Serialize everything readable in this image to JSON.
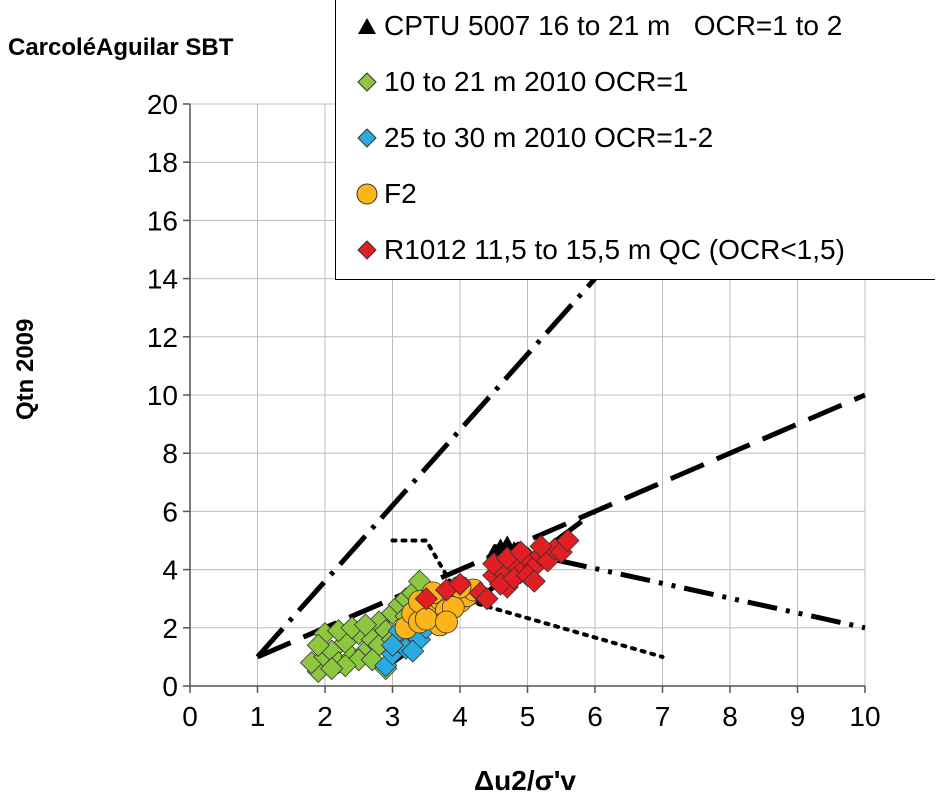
{
  "chart_data": {
    "type": "scatter",
    "title": "CarcoléAguilar SBT",
    "xlabel": "Δu2/σ'v",
    "ylabel": "Qtn 2009",
    "xlim": [
      0,
      10
    ],
    "ylim": [
      0,
      20
    ],
    "x_ticks": [
      "0",
      "1",
      "2",
      "3",
      "4",
      "5",
      "6",
      "7",
      "8",
      "9",
      "10"
    ],
    "y_ticks": [
      "0",
      "2",
      "4",
      "6",
      "8",
      "10",
      "12",
      "14",
      "16",
      "18",
      "20"
    ],
    "grid": true,
    "legend_position": "top-right",
    "series": [
      {
        "name": "CPTU 5007 16 to 21 m   OCR=1 to 2",
        "marker": "triangle",
        "color": "#000000",
        "points": [
          [
            4.5,
            4.6
          ],
          [
            4.6,
            4.8
          ],
          [
            4.7,
            4.9
          ],
          [
            4.6,
            4.5
          ],
          [
            4.8,
            4.7
          ],
          [
            4.5,
            4.3
          ]
        ]
      },
      {
        "name": "10 to 21 m 2010 OCR=1",
        "marker": "diamond",
        "color": "#8dc63f",
        "points": [
          [
            1.9,
            0.5
          ],
          [
            1.8,
            0.8
          ],
          [
            2.0,
            1.0
          ],
          [
            2.1,
            1.2
          ],
          [
            2.2,
            0.8
          ],
          [
            2.3,
            1.5
          ],
          [
            2.4,
            1.0
          ],
          [
            2.5,
            1.8
          ],
          [
            2.6,
            1.2
          ],
          [
            2.7,
            1.6
          ],
          [
            2.8,
            2.2
          ],
          [
            2.9,
            0.6
          ],
          [
            2.0,
            1.8
          ],
          [
            2.2,
            1.9
          ],
          [
            2.4,
            2.0
          ],
          [
            2.6,
            2.1
          ],
          [
            2.8,
            1.4
          ],
          [
            3.0,
            2.5
          ],
          [
            3.1,
            2.8
          ],
          [
            3.2,
            3.0
          ],
          [
            3.3,
            3.2
          ],
          [
            3.4,
            3.6
          ],
          [
            2.5,
            0.9
          ],
          [
            2.3,
            0.7
          ],
          [
            2.1,
            0.6
          ],
          [
            2.9,
            1.9
          ],
          [
            3.0,
            1.6
          ],
          [
            1.9,
            1.4
          ],
          [
            2.7,
            0.9
          ],
          [
            3.2,
            2.4
          ]
        ]
      },
      {
        "name": "25 to 30 m 2010 OCR=1-2",
        "marker": "diamond",
        "color": "#29abe2",
        "points": [
          [
            2.9,
            0.7
          ],
          [
            3.0,
            1.1
          ],
          [
            3.1,
            1.5
          ],
          [
            3.2,
            1.3
          ],
          [
            3.3,
            1.8
          ],
          [
            3.4,
            1.6
          ],
          [
            3.5,
            2.0
          ],
          [
            3.1,
            1.9
          ],
          [
            3.0,
            1.4
          ],
          [
            3.3,
            1.2
          ]
        ]
      },
      {
        "name": "F2",
        "marker": "circle",
        "color": "#fbb41a",
        "points": [
          [
            3.2,
            2.0
          ],
          [
            3.3,
            2.5
          ],
          [
            3.4,
            2.2
          ],
          [
            3.5,
            2.8
          ],
          [
            3.6,
            2.4
          ],
          [
            3.7,
            3.0
          ],
          [
            3.8,
            2.6
          ],
          [
            3.9,
            3.2
          ],
          [
            4.0,
            2.9
          ],
          [
            4.1,
            3.1
          ],
          [
            4.2,
            3.3
          ],
          [
            3.6,
            3.2
          ],
          [
            3.4,
            2.9
          ],
          [
            3.7,
            2.1
          ],
          [
            3.9,
            2.7
          ],
          [
            4.0,
            3.4
          ],
          [
            3.5,
            2.3
          ],
          [
            3.8,
            2.2
          ]
        ]
      },
      {
        "name": "R1012 11,5 to 15,5 m QC (OCR<1,5)",
        "marker": "diamond",
        "color": "#e01e24",
        "points": [
          [
            3.5,
            3.0
          ],
          [
            3.8,
            3.3
          ],
          [
            4.0,
            3.5
          ],
          [
            4.3,
            3.2
          ],
          [
            4.5,
            3.8
          ],
          [
            4.6,
            4.0
          ],
          [
            4.7,
            3.4
          ],
          [
            4.8,
            4.2
          ],
          [
            4.9,
            3.9
          ],
          [
            5.0,
            4.4
          ],
          [
            5.1,
            4.1
          ],
          [
            5.2,
            4.5
          ],
          [
            5.3,
            4.3
          ],
          [
            5.4,
            4.7
          ],
          [
            5.5,
            4.6
          ],
          [
            5.6,
            5.0
          ],
          [
            4.4,
            3.0
          ],
          [
            4.6,
            3.5
          ],
          [
            4.8,
            3.7
          ],
          [
            5.0,
            3.8
          ],
          [
            4.5,
            4.2
          ],
          [
            4.7,
            4.4
          ],
          [
            5.2,
            4.8
          ],
          [
            4.9,
            4.6
          ],
          [
            5.1,
            3.6
          ]
        ]
      }
    ],
    "reference_lines": [
      {
        "style": "dash-dot",
        "x": [
          1,
          6
        ],
        "y": [
          1,
          14
        ]
      },
      {
        "style": "long-dash",
        "x": [
          1,
          10
        ],
        "y": [
          1,
          10
        ]
      },
      {
        "style": "long-dash",
        "x": [
          3,
          6
        ],
        "y": [
          0.8,
          6
        ]
      },
      {
        "style": "dotted",
        "x": [
          3,
          3.5,
          4,
          7
        ],
        "y": [
          5,
          5,
          3,
          1
        ]
      },
      {
        "style": "dash-dot-dot",
        "x": [
          4.5,
          10
        ],
        "y": [
          4.8,
          2
        ]
      }
    ]
  }
}
